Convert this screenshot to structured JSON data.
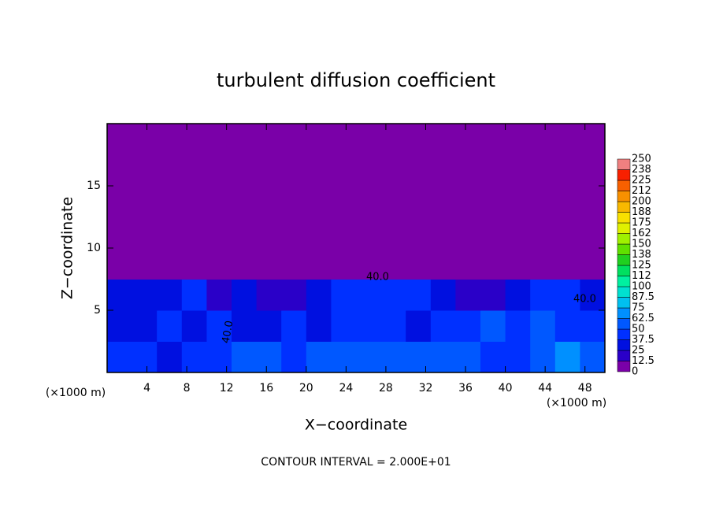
{
  "chart_data": {
    "type": "heatmap",
    "title": "turbulent diffusion coefficient",
    "x_label": "X−coordinate",
    "y_label": "Z−coordinate",
    "x_unit": "(×1000 m)",
    "y_unit": "(×1000 m)",
    "footnote": "CONTOUR INTERVAL = 2.000E+01",
    "contour_labels": [
      "40.0",
      "40.0",
      "40.0"
    ],
    "xlim": [
      0,
      50
    ],
    "xticks": [
      4,
      8,
      12,
      16,
      20,
      24,
      28,
      32,
      36,
      40,
      44,
      48
    ],
    "ylim": [
      0,
      20
    ],
    "yticks": [
      5,
      10,
      15
    ],
    "x": [
      1.25,
      3.75,
      6.25,
      8.75,
      11.25,
      13.75,
      16.25,
      18.75,
      21.25,
      23.75,
      26.25,
      28.75,
      31.25,
      33.75,
      36.25,
      38.75,
      41.25,
      43.75,
      46.25,
      48.75
    ],
    "z": [
      1.25,
      3.75,
      6.25,
      8.75,
      11.25,
      13.75,
      16.25,
      18.75
    ],
    "values": [
      [
        40,
        45,
        30,
        45,
        40,
        50,
        50,
        45,
        55,
        60,
        55,
        60,
        55,
        50,
        50,
        40,
        45,
        60,
        70,
        60
      ],
      [
        35,
        30,
        40,
        30,
        40,
        25,
        30,
        40,
        35,
        45,
        45,
        40,
        35,
        45,
        40,
        50,
        45,
        50,
        40,
        45
      ],
      [
        35,
        30,
        30,
        40,
        20,
        30,
        20,
        15,
        25,
        40,
        45,
        45,
        40,
        30,
        20,
        15,
        30,
        40,
        40,
        35
      ],
      [
        5,
        0,
        0,
        0,
        0,
        0,
        0,
        0,
        0,
        0,
        0,
        0,
        0,
        0,
        0,
        0,
        0,
        0,
        5,
        5
      ],
      [
        0,
        0,
        0,
        0,
        0,
        0,
        0,
        0,
        0,
        0,
        0,
        0,
        0,
        0,
        0,
        0,
        0,
        0,
        0,
        0
      ],
      [
        0,
        0,
        0,
        0,
        0,
        0,
        0,
        0,
        0,
        0,
        0,
        0,
        0,
        0,
        0,
        0,
        0,
        0,
        0,
        0
      ],
      [
        0,
        0,
        0,
        0,
        0,
        0,
        0,
        0,
        0,
        0,
        0,
        0,
        0,
        0,
        0,
        0,
        0,
        0,
        0,
        0
      ],
      [
        0,
        0,
        0,
        0,
        0,
        0,
        0,
        0,
        0,
        0,
        0,
        0,
        0,
        0,
        0,
        0,
        0,
        0,
        0,
        0
      ]
    ],
    "levels": [
      0,
      12.5,
      25,
      37.5,
      50,
      62.5,
      75,
      87.5,
      100,
      {
        "value": 112.5,
        "label": "112"
      },
      125,
      {
        "value": 137.5,
        "label": "138"
      },
      150,
      {
        "value": 162.5,
        "label": "162"
      },
      175,
      {
        "value": 187.5,
        "label": "188"
      },
      200,
      {
        "value": 212.5,
        "label": "212"
      },
      225,
      {
        "value": 237.5,
        "label": "238"
      },
      250
    ],
    "colors": [
      "#7a00a8",
      "#2a00c8",
      "#0010e0",
      "#0030ff",
      "#0058ff",
      "#0090ff",
      "#00c0f0",
      "#00e0d0",
      "#00f0a0",
      "#00e060",
      "#20d020",
      "#60e000",
      "#a0f000",
      "#e0f000",
      "#f8e000",
      "#f8b800",
      "#f89000",
      "#f86000",
      "#f82000",
      "#f08080"
    ]
  }
}
